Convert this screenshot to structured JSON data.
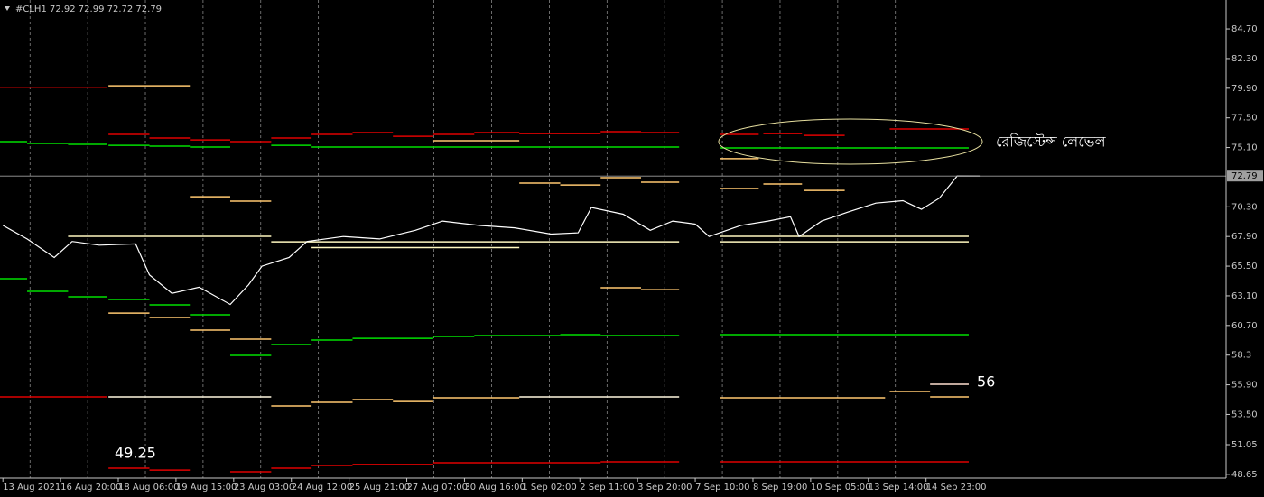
{
  "chart_data": {
    "type": "line",
    "title": "#CLH1  72.92 72.99 72.72 72.79",
    "xlim": [
      -0.05,
      21.2
    ],
    "ylim": [
      48.35,
      87.04
    ],
    "xticks": [
      {
        "value": 0,
        "label": "13 Aug 2021"
      },
      {
        "value": 1,
        "label": "16 Aug 20:00"
      },
      {
        "value": 2,
        "label": "18 Aug 06:00"
      },
      {
        "value": 3,
        "label": "19 Aug 15:00"
      },
      {
        "value": 4,
        "label": "23 Aug 03:00"
      },
      {
        "value": 5,
        "label": "24 Aug 12:00"
      },
      {
        "value": 6,
        "label": "25 Aug 21:00"
      },
      {
        "value": 7,
        "label": "27 Aug 07:00"
      },
      {
        "value": 8,
        "label": "30 Aug 16:00"
      },
      {
        "value": 9,
        "label": "1 Sep 02:00"
      },
      {
        "value": 10,
        "label": "2 Sep 11:00"
      },
      {
        "value": 11,
        "label": "3 Sep 20:00"
      },
      {
        "value": 12,
        "label": "7 Sep 10:00"
      },
      {
        "value": 13,
        "label": "8 Sep 19:00"
      },
      {
        "value": 14,
        "label": "10 Sep 05:00"
      },
      {
        "value": 15,
        "label": "13 Sep 14:00"
      },
      {
        "value": 16,
        "label": "14 Sep 23:00"
      }
    ],
    "yticks": [
      {
        "value": 84.7,
        "label": "84.70"
      },
      {
        "value": 82.3,
        "label": "82.30"
      },
      {
        "value": 79.9,
        "label": "79.90"
      },
      {
        "value": 77.5,
        "label": "77.50"
      },
      {
        "value": 75.1,
        "label": "75.10"
      },
      {
        "value": 70.3,
        "label": "70.30"
      },
      {
        "value": 67.9,
        "label": "67.90"
      },
      {
        "value": 65.5,
        "label": "65.50"
      },
      {
        "value": 63.1,
        "label": "63.10"
      },
      {
        "value": 60.7,
        "label": "60.70"
      },
      58.3,
      {
        "value": 55.9,
        "label": "55.90"
      },
      {
        "value": 53.5,
        "label": "53.50"
      },
      51.05,
      48.65
    ],
    "last_price": 72.79,
    "grid": true,
    "series": [
      {
        "color": "#ffffff",
        "x": [
          0,
          0.42,
          0.89,
          1.2,
          1.67,
          2.3,
          2.54,
          2.93,
          3.4,
          3.94,
          4.26,
          4.49,
          4.96,
          5.27,
          5.9,
          6.53,
          7.15,
          7.62,
          8.25,
          8.87,
          9.5,
          9.97,
          10.2,
          10.75,
          11.22,
          11.61,
          12.0,
          12.24,
          12.79,
          13.26,
          13.65,
          13.8,
          14.19,
          14.66,
          15.13,
          15.6,
          15.92,
          16.23,
          16.54,
          16.93
        ],
        "values": [
          68.8,
          67.7,
          66.2,
          67.5,
          67.2,
          67.3,
          64.8,
          63.3,
          63.8,
          62.4,
          64.0,
          65.5,
          66.2,
          67.5,
          67.9,
          67.7,
          68.4,
          69.15,
          68.8,
          68.6,
          68.1,
          68.2,
          70.25,
          69.7,
          68.4,
          69.15,
          68.9,
          67.9,
          68.8,
          69.15,
          69.5,
          67.9,
          69.15,
          69.9,
          70.6,
          70.8,
          70.1,
          71.0,
          72.8,
          72.79
        ]
      }
    ],
    "levels": [
      {
        "y": 79.97,
        "x": [
          -0.05,
          1.8
        ],
        "color": "#a00000"
      },
      {
        "y": 80.1,
        "x": [
          1.83,
          3.24
        ],
        "color": "#ffc870"
      },
      {
        "y": 75.58,
        "x": [
          -0.05,
          0.42
        ],
        "color": "#00e000"
      },
      {
        "y": 75.43,
        "x": [
          0.42,
          1.13
        ],
        "color": "#00e000"
      },
      {
        "y": 75.36,
        "x": [
          1.13,
          1.8
        ],
        "color": "#00e000"
      },
      {
        "y": 75.28,
        "x": [
          1.83,
          2.54
        ],
        "color": "#00e000"
      },
      {
        "y": 76.16,
        "x": [
          1.83,
          2.54
        ],
        "color": "#e00000"
      },
      {
        "y": 75.87,
        "x": [
          2.54,
          3.24
        ],
        "color": "#e00000"
      },
      {
        "y": 75.21,
        "x": [
          2.54,
          3.24
        ],
        "color": "#00e000"
      },
      {
        "y": 75.72,
        "x": [
          3.24,
          3.94
        ],
        "color": "#e00000"
      },
      {
        "y": 75.14,
        "x": [
          3.24,
          3.94
        ],
        "color": "#00e000"
      },
      {
        "y": 75.58,
        "x": [
          3.94,
          4.65
        ],
        "color": "#e00000"
      },
      {
        "y": 75.87,
        "x": [
          4.65,
          5.35
        ],
        "color": "#e00000"
      },
      {
        "y": 75.28,
        "x": [
          4.65,
          5.35
        ],
        "color": "#00e000"
      },
      {
        "y": 76.16,
        "x": [
          5.35,
          6.06
        ],
        "color": "#e00000"
      },
      {
        "y": 76.31,
        "x": [
          6.06,
          6.76
        ],
        "color": "#e00000"
      },
      {
        "y": 76.01,
        "x": [
          6.76,
          7.46
        ],
        "color": "#e00000"
      },
      {
        "y": 76.16,
        "x": [
          7.46,
          8.17
        ],
        "color": "#e00000"
      },
      {
        "y": 76.31,
        "x": [
          8.17,
          8.95
        ],
        "color": "#e00000"
      },
      {
        "y": 76.23,
        "x": [
          8.95,
          10.36
        ],
        "color": "#e00000"
      },
      {
        "y": 76.38,
        "x": [
          10.36,
          11.06
        ],
        "color": "#e00000"
      },
      {
        "y": 76.31,
        "x": [
          11.06,
          11.72
        ],
        "color": "#e00000"
      },
      {
        "y": 75.14,
        "x": [
          5.35,
          11.72
        ],
        "color": "#00e000"
      },
      {
        "y": 75.65,
        "x": [
          7.46,
          8.95
        ],
        "color": "#ffc870"
      },
      {
        "y": 76.16,
        "x": [
          12.43,
          13.1
        ],
        "color": "#e00000"
      },
      {
        "y": 76.23,
        "x": [
          13.18,
          13.85
        ],
        "color": "#e00000"
      },
      {
        "y": 76.08,
        "x": [
          13.88,
          14.59
        ],
        "color": "#e00000"
      },
      {
        "y": 76.6,
        "x": [
          15.37,
          16.74
        ],
        "color": "#e00000"
      },
      {
        "y": 75.07,
        "x": [
          12.43,
          16.74
        ],
        "color": "#00e000"
      },
      {
        "y": 74.2,
        "x": [
          12.43,
          13.1
        ],
        "color": "#ffc870"
      },
      {
        "y": 72.22,
        "x": [
          8.95,
          9.66
        ],
        "color": "#ffc870"
      },
      {
        "y": 72.07,
        "x": [
          9.66,
          10.36
        ],
        "color": "#ffc870"
      },
      {
        "y": 72.66,
        "x": [
          10.36,
          11.06
        ],
        "color": "#ffc870"
      },
      {
        "y": 72.29,
        "x": [
          11.06,
          11.72
        ],
        "color": "#ffc870"
      },
      {
        "y": 71.78,
        "x": [
          12.43,
          13.1
        ],
        "color": "#ffc870"
      },
      {
        "y": 72.15,
        "x": [
          13.18,
          13.85
        ],
        "color": "#ffc870"
      },
      {
        "y": 71.63,
        "x": [
          13.88,
          14.59
        ],
        "color": "#ffc870"
      },
      {
        "y": 71.12,
        "x": [
          3.24,
          3.94
        ],
        "color": "#ffc870"
      },
      {
        "y": 70.76,
        "x": [
          3.94,
          4.65
        ],
        "color": "#ffc870"
      },
      {
        "y": 67.91,
        "x": [
          1.13,
          4.65
        ],
        "color": "#fff8c0"
      },
      {
        "y": 67.47,
        "x": [
          4.65,
          8.95
        ],
        "color": "#fff8c0"
      },
      {
        "y": 67.0,
        "x": [
          5.35,
          8.95
        ],
        "color": "#fff8c0"
      },
      {
        "y": 67.47,
        "x": [
          8.95,
          11.72
        ],
        "color": "#fff8c0"
      },
      {
        "y": 67.91,
        "x": [
          12.43,
          16.74
        ],
        "color": "#fff8c0"
      },
      {
        "y": 67.47,
        "x": [
          12.43,
          16.74
        ],
        "color": "#fff8c0"
      },
      {
        "y": 64.48,
        "x": [
          -0.05,
          0.42
        ],
        "color": "#00e000"
      },
      {
        "y": 63.46,
        "x": [
          0.42,
          1.13
        ],
        "color": "#00e000"
      },
      {
        "y": 63.02,
        "x": [
          1.13,
          1.8
        ],
        "color": "#00e000"
      },
      {
        "y": 62.8,
        "x": [
          1.83,
          2.54
        ],
        "color": "#00e000"
      },
      {
        "y": 61.7,
        "x": [
          1.83,
          2.54
        ],
        "color": "#ffc870"
      },
      {
        "y": 62.37,
        "x": [
          2.54,
          3.24
        ],
        "color": "#00e000"
      },
      {
        "y": 61.34,
        "x": [
          2.54,
          3.24
        ],
        "color": "#ffc870"
      },
      {
        "y": 61.56,
        "x": [
          3.24,
          3.94
        ],
        "color": "#00e000"
      },
      {
        "y": 60.32,
        "x": [
          3.24,
          3.94
        ],
        "color": "#ffc870"
      },
      {
        "y": 59.59,
        "x": [
          3.94,
          4.65
        ],
        "color": "#ffc870"
      },
      {
        "y": 58.28,
        "x": [
          3.94,
          4.65
        ],
        "color": "#00e000"
      },
      {
        "y": 59.15,
        "x": [
          4.65,
          5.35
        ],
        "color": "#00e000"
      },
      {
        "y": 59.52,
        "x": [
          5.35,
          6.06
        ],
        "color": "#00e000"
      },
      {
        "y": 59.66,
        "x": [
          6.06,
          7.46
        ],
        "color": "#00e000"
      },
      {
        "y": 59.81,
        "x": [
          7.46,
          8.17
        ],
        "color": "#00e000"
      },
      {
        "y": 59.88,
        "x": [
          8.17,
          9.66
        ],
        "color": "#00e000"
      },
      {
        "y": 59.96,
        "x": [
          9.66,
          10.36
        ],
        "color": "#00e000"
      },
      {
        "y": 59.88,
        "x": [
          10.36,
          11.72
        ],
        "color": "#00e000"
      },
      {
        "y": 63.75,
        "x": [
          10.36,
          11.06
        ],
        "color": "#ffc870"
      },
      {
        "y": 63.6,
        "x": [
          11.06,
          11.72
        ],
        "color": "#ffc870"
      },
      {
        "y": 59.96,
        "x": [
          12.43,
          16.74
        ],
        "color": "#00e000"
      },
      {
        "y": 54.92,
        "x": [
          -0.05,
          1.8
        ],
        "color": "#e00000"
      },
      {
        "y": 54.92,
        "x": [
          1.83,
          4.65
        ],
        "color": "#fff8e0"
      },
      {
        "y": 54.19,
        "x": [
          4.65,
          5.35
        ],
        "color": "#ffc870"
      },
      {
        "y": 54.48,
        "x": [
          5.35,
          6.06
        ],
        "color": "#ffc870"
      },
      {
        "y": 54.7,
        "x": [
          6.06,
          6.76
        ],
        "color": "#ffc870"
      },
      {
        "y": 54.55,
        "x": [
          6.76,
          7.46
        ],
        "color": "#ffc870"
      },
      {
        "y": 54.85,
        "x": [
          7.46,
          8.95
        ],
        "color": "#ffc870"
      },
      {
        "y": 54.92,
        "x": [
          8.95,
          11.72
        ],
        "color": "#fff8e0"
      },
      {
        "y": 54.85,
        "x": [
          12.43,
          15.29
        ],
        "color": "#ffc870"
      },
      {
        "y": 55.36,
        "x": [
          15.37,
          16.07
        ],
        "color": "#ffc870"
      },
      {
        "y": 55.94,
        "x": [
          16.07,
          16.74
        ],
        "color": "#ffe0d0"
      },
      {
        "y": 54.92,
        "x": [
          16.07,
          16.74
        ],
        "color": "#ffc870"
      },
      {
        "y": 49.15,
        "x": [
          1.83,
          2.54
        ],
        "color": "#e00000"
      },
      {
        "y": 49.0,
        "x": [
          2.54,
          3.24
        ],
        "color": "#e00000"
      },
      {
        "y": 48.86,
        "x": [
          3.94,
          4.65
        ],
        "color": "#e00000"
      },
      {
        "y": 49.15,
        "x": [
          4.65,
          5.35
        ],
        "color": "#e00000"
      },
      {
        "y": 49.37,
        "x": [
          5.35,
          6.06
        ],
        "color": "#e00000"
      },
      {
        "y": 49.45,
        "x": [
          6.06,
          7.46
        ],
        "color": "#e00000"
      },
      {
        "y": 49.59,
        "x": [
          7.46,
          10.36
        ],
        "color": "#e00000"
      },
      {
        "y": 49.66,
        "x": [
          10.36,
          11.72
        ],
        "color": "#e00000"
      },
      {
        "y": 49.66,
        "x": [
          12.43,
          16.74
        ],
        "color": "#e00000"
      }
    ],
    "annotations": [
      "49.25",
      "56",
      "রেজিস্টেন্স লেভেল"
    ]
  }
}
